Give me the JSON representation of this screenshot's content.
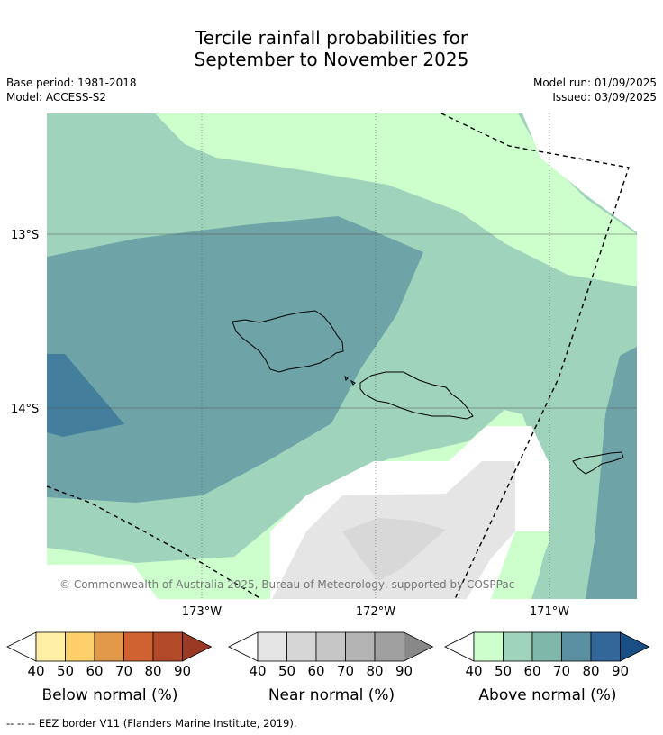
{
  "title_line1": "Tercile rainfall probabilities for",
  "title_line2": "September to November 2025",
  "base_period": "Base period: 1981-2018",
  "model": "Model: ACCESS-S2",
  "model_run": "Model run: 01/09/2025",
  "issued": "Issued: 03/09/2025",
  "lat_labels": [
    "13°S",
    "14°S"
  ],
  "lon_labels": [
    "173°W",
    "172°W",
    "171°W"
  ],
  "copyright": "© Commonwealth of Australia 2025, Bureau of Meteorology, supported by COSPPac",
  "footnote": "--  --  -- EEZ border V11 (Flanders Marine Institute, 2019).",
  "legends": [
    {
      "title": "Below normal (%)",
      "ticks": [
        "40",
        "50",
        "60",
        "70",
        "80",
        "90"
      ],
      "colors": [
        "#fff0a6",
        "#fdd06a",
        "#e3994a",
        "#d06232",
        "#b34b2b",
        "#9a3a24"
      ]
    },
    {
      "title": "Near normal (%)",
      "ticks": [
        "40",
        "50",
        "60",
        "70",
        "80",
        "90"
      ],
      "colors": [
        "#e5e5e5",
        "#d6d6d6",
        "#c6c6c6",
        "#b4b4b4",
        "#a0a0a0",
        "#888888"
      ]
    },
    {
      "title": "Above normal (%)",
      "ticks": [
        "40",
        "50",
        "60",
        "70",
        "80",
        "90"
      ],
      "colors": [
        "#ccffcc",
        "#9fd3bb",
        "#7fb7ab",
        "#5a90a2",
        "#336699",
        "#1a4f85"
      ]
    }
  ],
  "map_colors": {
    "above_40_50": "#ccffcc",
    "above_50_60": "#9fd3bb",
    "above_60_70": "#6ea4a8",
    "above_70_80": "#437f9c",
    "near_40_50": "#e5e5e5",
    "near_50_60": "#d8d8d8"
  }
}
